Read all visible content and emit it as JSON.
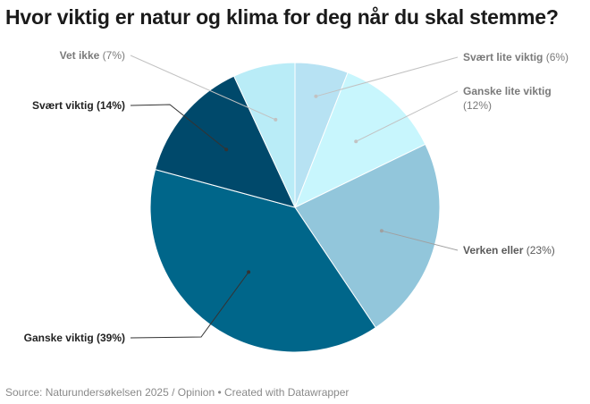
{
  "chart_data": {
    "type": "pie",
    "title": "Hvor viktig er natur og klima for deg når du skal stemme?",
    "source": "Source: Naturundersøkelsen 2025 / Opinion • Created with Datawrapper",
    "slices": [
      {
        "name": "Svært lite viktig",
        "value": 6,
        "display": "(6%)",
        "color": "#b7e2f3"
      },
      {
        "name": "Ganske lite viktig",
        "value": 12,
        "display": "(12%)",
        "color": "#c8f6fd"
      },
      {
        "name": "Verken eller",
        "value": 23,
        "display": "(23%)",
        "color": "#92c6db"
      },
      {
        "name": "Ganske viktig",
        "value": 39,
        "display": "(39%)",
        "color": "#00668a"
      },
      {
        "name": "Svært viktig",
        "value": 14,
        "display": "(14%)",
        "color": "#00496b"
      },
      {
        "name": "Vet ikke",
        "value": 7,
        "display": "(7%)",
        "color": "#b9ecf7"
      }
    ]
  }
}
